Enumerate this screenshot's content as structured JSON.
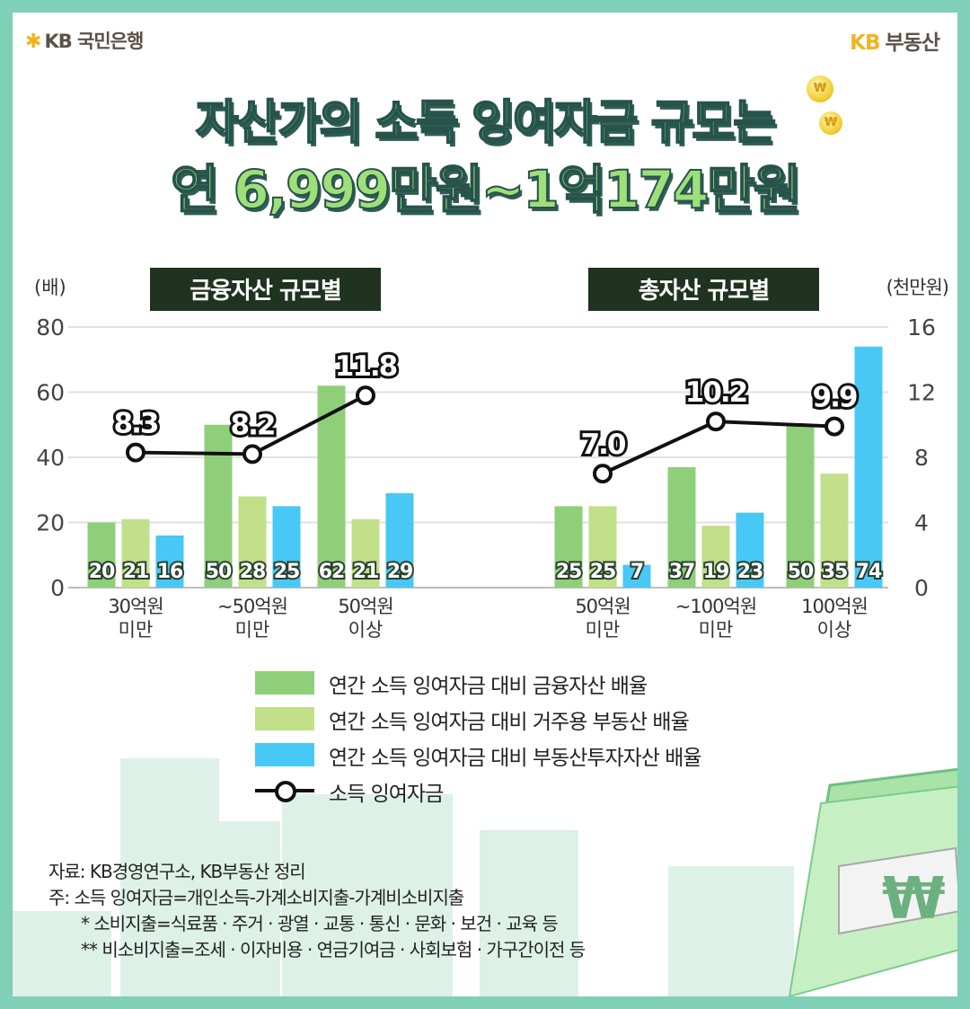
{
  "header": {
    "bank_logo": "KB 국민은행",
    "realty_logo_kb": "KB",
    "realty_logo_name": "부동산"
  },
  "title": {
    "line1": "자산가의 소득 잉여자금 규모는",
    "line2": "연 6,999만원~1억174만원"
  },
  "colors": {
    "financial": "#8fcf79",
    "housing": "#c2df8a",
    "investment": "#47c8f5",
    "line": "#111111",
    "panel_label_bg": "#1f3320",
    "grid": "#e1e1e1"
  },
  "chart_data": {
    "type": "bar",
    "left_axis_unit": "(배)",
    "right_axis_unit": "(천만원)",
    "left_ylim": [
      0,
      80
    ],
    "left_ticks": [
      "0",
      "20",
      "40",
      "60",
      "80"
    ],
    "right_ylim": [
      0,
      16
    ],
    "right_ticks": [
      "0",
      "4",
      "8",
      "12",
      "16"
    ],
    "grid": true,
    "panels": [
      {
        "label": "금융자산 규모별",
        "categories": [
          {
            "line1": "30억원",
            "line2": "미만"
          },
          {
            "line1": "~50억원",
            "line2": "미만"
          },
          {
            "line1": "50억원",
            "line2": "이상"
          }
        ],
        "series": [
          {
            "values": [
              20,
              50,
              62
            ]
          },
          {
            "values": [
              21,
              28,
              21
            ]
          },
          {
            "values": [
              16,
              25,
              29
            ]
          }
        ],
        "line_values": [
          8.3,
          8.2,
          11.8
        ],
        "line_labels": [
          "8.3",
          "8.2",
          "11.8"
        ]
      },
      {
        "label": "총자산 규모별",
        "categories": [
          {
            "line1": "50억원",
            "line2": "미만"
          },
          {
            "line1": "~100억원",
            "line2": "미만"
          },
          {
            "line1": "100억원",
            "line2": "이상"
          }
        ],
        "series": [
          {
            "values": [
              25,
              37,
              50
            ]
          },
          {
            "values": [
              25,
              19,
              35
            ]
          },
          {
            "values": [
              7,
              23,
              74
            ]
          }
        ],
        "line_values": [
          7.0,
          10.2,
          9.9
        ],
        "line_labels": [
          "7.0",
          "10.2",
          "9.9"
        ]
      }
    ],
    "legend": [
      {
        "label": "연간 소득 잉여자금 대비 금융자산 배율",
        "kind": "bar"
      },
      {
        "label": "연간 소득 잉여자금 대비 거주용 부동산 배율",
        "kind": "bar"
      },
      {
        "label": "연간 소득 잉여자금 대비 부동산투자자산 배율",
        "kind": "bar"
      },
      {
        "label": "소득 잉여자금",
        "kind": "line"
      }
    ]
  },
  "notes": {
    "source": "자료: KB경영연구소, KB부동산 정리",
    "note1": "주: 소득 잉여자금=개인소득-가계소비지출-가계비소비지출",
    "note2": "* 소비지출=식료품 · 주거 · 광열 · 교통 · 통신 · 문화 · 보건 · 교육 등",
    "note3": "** 비소비지출=조세 · 이자비용 · 연금기여금 · 사회보험 · 가구간이전 등"
  },
  "decor": {
    "coin_symbol": "₩",
    "money_symbol": "₩"
  }
}
